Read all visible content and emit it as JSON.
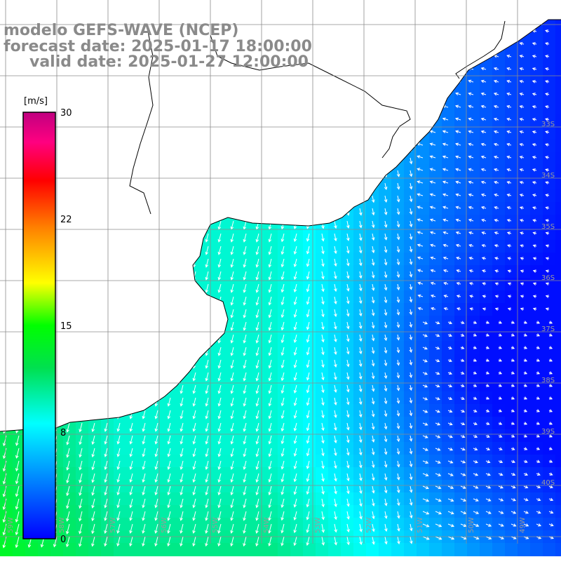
{
  "title": {
    "model": "modelo GEFS-WAVE (NCEP)",
    "forecast": "forecast date: 2025-01-17 18:00:00",
    "valid": "valid date: 2025-01-27 12:00:00"
  },
  "colorbar": {
    "unit": "[m/s]",
    "ticks": [
      "30",
      "22",
      "15",
      "8",
      "0"
    ],
    "tick_values": [
      30,
      22,
      15,
      8,
      0
    ],
    "colors": [
      "#0000ff",
      "#00b4ff",
      "#00ffff",
      "#00ff00",
      "#ffff00",
      "#ff8000",
      "#ff0000",
      "#ff0090",
      "#c00080"
    ]
  },
  "axes": {
    "lat_labels": [
      "33S",
      "34S",
      "35S",
      "36S",
      "37S",
      "38S",
      "39S",
      "40S"
    ],
    "lon_labels": [
      "59W",
      "58W",
      "57W",
      "56W",
      "55W",
      "54W",
      "53W",
      "52W",
      "51W",
      "50W",
      "49W"
    ],
    "grid": true
  },
  "colors": {
    "land": "#ffffff",
    "coast": "#000000",
    "grid": "#8c8c8c",
    "arrow": "#ffffff",
    "title": "#8a8a8a"
  },
  "field_description": "wind speed shaded from 0 to 30 m/s with white direction arrows"
}
